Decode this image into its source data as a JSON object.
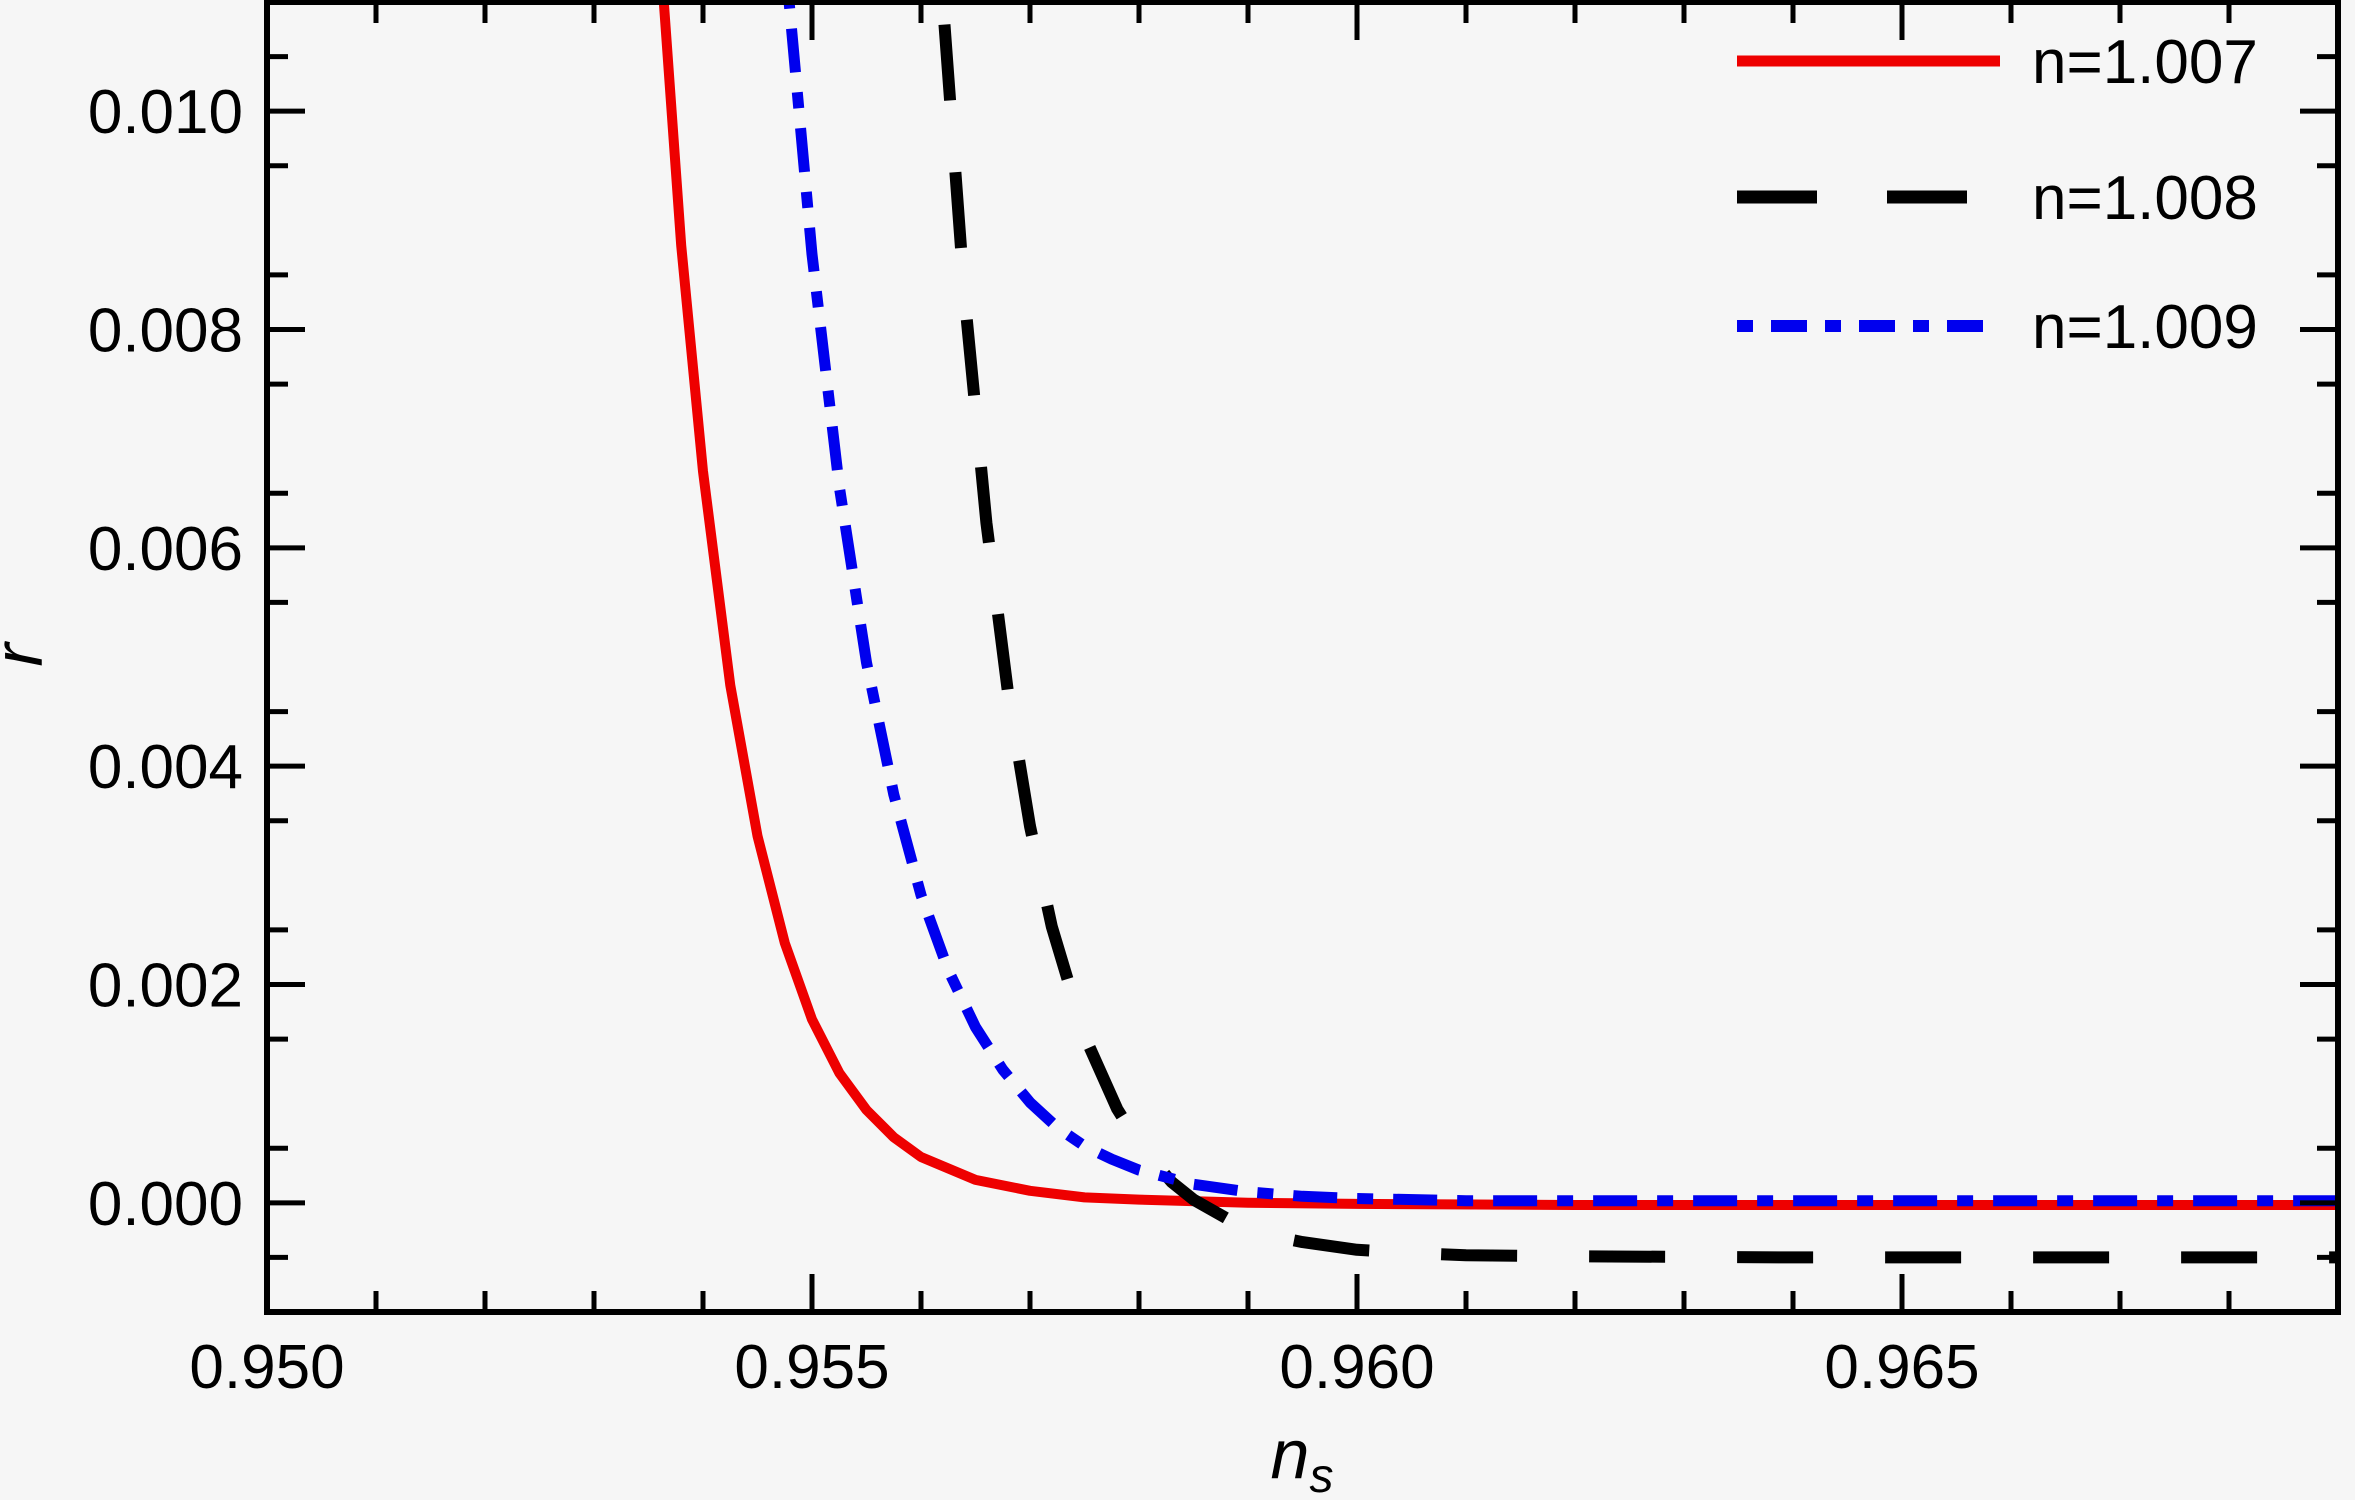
{
  "figure": {
    "background_color": "#f6f6f6",
    "frame_color": "#000000"
  },
  "chart_data": {
    "type": "line",
    "title": "",
    "xlabel_base": "n",
    "xlabel_sub": "s",
    "ylabel": "r",
    "xlim": [
      0.95,
      0.969
    ],
    "ylim": [
      -0.001,
      0.011
    ],
    "grid": "off",
    "frame": "on",
    "x_ticks": {
      "major_values": [
        0.95,
        0.955,
        0.96,
        0.965
      ],
      "major_labels": [
        "0.950",
        "0.955",
        "0.960",
        "0.965"
      ],
      "minor_values": [
        0.951,
        0.952,
        0.953,
        0.954,
        0.956,
        0.957,
        0.958,
        0.959,
        0.961,
        0.962,
        0.963,
        0.964,
        0.966,
        0.967,
        0.968
      ]
    },
    "y_ticks": {
      "major_values": [
        0.0,
        0.002,
        0.004,
        0.006,
        0.008,
        0.01
      ],
      "major_labels": [
        "0.000",
        "0.002",
        "0.004",
        "0.006",
        "0.008",
        "0.010"
      ],
      "minor_values": [
        -0.0005,
        0.0005,
        0.0015,
        0.0025,
        0.0035,
        0.0045,
        0.0055,
        0.0065,
        0.0075,
        0.0085,
        0.0095,
        0.0105
      ]
    },
    "legend": {
      "position": "top-right",
      "items": [
        {
          "label": "n=1.007",
          "series_index": 0
        },
        {
          "label": "n=1.008",
          "series_index": 1
        },
        {
          "label": "n=1.009",
          "series_index": 2
        }
      ]
    },
    "series": [
      {
        "name": "n=1.007",
        "color": "#ee0000",
        "line_style": "solid",
        "points": [
          [
            0.9535,
            0.0135
          ],
          [
            0.95364,
            0.011
          ],
          [
            0.9538,
            0.00877
          ],
          [
            0.954,
            0.0067
          ],
          [
            0.95425,
            0.00474
          ],
          [
            0.9545,
            0.00336
          ],
          [
            0.95475,
            0.00238
          ],
          [
            0.955,
            0.00168
          ],
          [
            0.95525,
            0.00119
          ],
          [
            0.9555,
            0.00085
          ],
          [
            0.95575,
            0.0006
          ],
          [
            0.956,
            0.00042
          ],
          [
            0.9565,
            0.00021
          ],
          [
            0.957,
            0.00011
          ],
          [
            0.9575,
            5e-05
          ],
          [
            0.958,
            3e-05
          ],
          [
            0.959,
            0.0
          ],
          [
            0.96,
            -1e-05
          ],
          [
            0.962,
            -2e-05
          ],
          [
            0.965,
            -2e-05
          ],
          [
            0.969,
            -2e-05
          ]
        ]
      },
      {
        "name": "n=1.008",
        "color": "#000000",
        "line_style": "dashed",
        "points": [
          [
            0.95606,
            0.0135
          ],
          [
            0.9562,
            0.011
          ],
          [
            0.9564,
            0.0083
          ],
          [
            0.9566,
            0.00623
          ],
          [
            0.9568,
            0.00466
          ],
          [
            0.957,
            0.00345
          ],
          [
            0.9572,
            0.00253
          ],
          [
            0.9575,
            0.00153
          ],
          [
            0.9578,
            0.00086
          ],
          [
            0.958,
            0.00054
          ],
          [
            0.9583,
            0.00019
          ],
          [
            0.9585,
            3e-05
          ],
          [
            0.9588,
            -0.00014
          ],
          [
            0.959,
            -0.00023
          ],
          [
            0.9593,
            -0.00032
          ],
          [
            0.9595,
            -0.00036
          ],
          [
            0.96,
            -0.00043
          ],
          [
            0.9605,
            -0.00046
          ],
          [
            0.961,
            -0.00048
          ],
          [
            0.962,
            -0.00049
          ],
          [
            0.964,
            -0.0005
          ],
          [
            0.967,
            -0.0005
          ],
          [
            0.969,
            -0.0005
          ]
        ]
      },
      {
        "name": "n=1.009",
        "color": "#0000ee",
        "line_style": "dashdot",
        "points": [
          [
            0.95465,
            0.0135
          ],
          [
            0.95479,
            0.011
          ],
          [
            0.955,
            0.00869
          ],
          [
            0.95525,
            0.00656
          ],
          [
            0.9555,
            0.00495
          ],
          [
            0.95575,
            0.00374
          ],
          [
            0.956,
            0.00282
          ],
          [
            0.95625,
            0.00213
          ],
          [
            0.9565,
            0.00161
          ],
          [
            0.95675,
            0.00122
          ],
          [
            0.957,
            0.00092
          ],
          [
            0.95725,
            0.00069
          ],
          [
            0.9575,
            0.00052
          ],
          [
            0.95775,
            0.0004
          ],
          [
            0.958,
            0.0003
          ],
          [
            0.9585,
            0.00017
          ],
          [
            0.959,
            0.0001
          ],
          [
            0.9595,
            6e-05
          ],
          [
            0.96,
            4e-05
          ],
          [
            0.961,
            2e-05
          ],
          [
            0.963,
            2e-05
          ],
          [
            0.966,
            2e-05
          ],
          [
            0.969,
            2e-05
          ]
        ]
      }
    ]
  }
}
